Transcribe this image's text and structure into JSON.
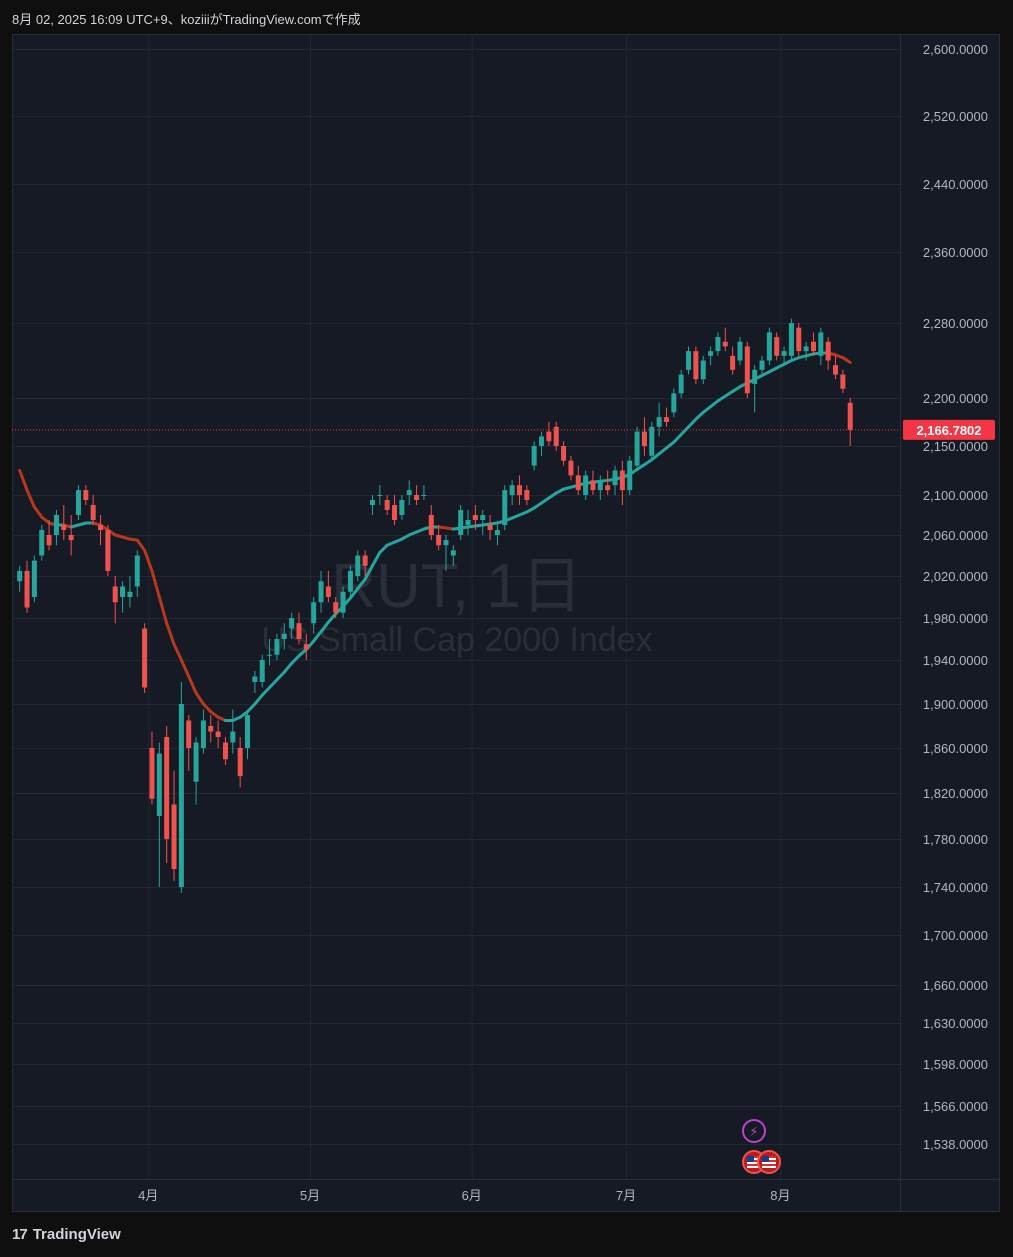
{
  "header": {
    "text": "8月 02, 2025 16:09 UTC+9、koziiiがTradingView.comで作成"
  },
  "watermark": {
    "symbol": "RUT, 1日",
    "name": "US Small Cap 2000 Index"
  },
  "footer": {
    "brand": "TradingView",
    "logo": "17"
  },
  "colors": {
    "up": "#26a69a",
    "down": "#ef5350",
    "ma_up": "#26a69a",
    "ma_down": "#b7381d",
    "price_tag": "#f23645"
  },
  "chart_data": {
    "type": "candlestick",
    "y_axis_ticks": [
      2600,
      2520,
      2440,
      2360,
      2280,
      2200,
      2150,
      2100,
      2060,
      2020,
      1980,
      1940,
      1900,
      1860,
      1820,
      1780,
      1740,
      1700,
      1660,
      1630,
      1598,
      1566,
      1538
    ],
    "y_axis_labels": [
      "2,600.0000",
      "2,520.0000",
      "2,440.0000",
      "2,360.0000",
      "2,280.0000",
      "2,200.0000",
      "2,150.0000",
      "2,100.0000",
      "2,060.0000",
      "2,020.0000",
      "1,980.0000",
      "1,940.0000",
      "1,900.0000",
      "1,860.0000",
      "1,820.0000",
      "1,780.0000",
      "1,740.0000",
      "1,700.0000",
      "1,660.0000",
      "1,630.0000",
      "1,598.0000",
      "1,566.0000",
      "1,538.0000"
    ],
    "x_axis_labels": [
      "4月",
      "5月",
      "6月",
      "7月",
      "8月"
    ],
    "x_axis_label_index": [
      18,
      40,
      62,
      83,
      104
    ],
    "last_price": 2166.7802,
    "last_price_label": "2,166.7802",
    "candles": [
      [
        2015,
        2030,
        2005,
        2025
      ],
      [
        2025,
        2035,
        1985,
        1990
      ],
      [
        2000,
        2040,
        1995,
        2035
      ],
      [
        2040,
        2070,
        2035,
        2065
      ],
      [
        2060,
        2075,
        2045,
        2050
      ],
      [
        2060,
        2085,
        2050,
        2080
      ],
      [
        2070,
        2090,
        2055,
        2065
      ],
      [
        2060,
        2080,
        2040,
        2055
      ],
      [
        2080,
        2110,
        2075,
        2105
      ],
      [
        2105,
        2110,
        2090,
        2095
      ],
      [
        2090,
        2100,
        2070,
        2075
      ],
      [
        2070,
        2080,
        2050,
        2065
      ],
      [
        2065,
        2070,
        2020,
        2025
      ],
      [
        2010,
        2020,
        1975,
        1995
      ],
      [
        2000,
        2015,
        1985,
        2010
      ],
      [
        2000,
        2020,
        1990,
        2005
      ],
      [
        2010,
        2045,
        2000,
        2040
      ],
      [
        1970,
        1975,
        1910,
        1915
      ],
      [
        1860,
        1875,
        1810,
        1815
      ],
      [
        1800,
        1865,
        1740,
        1855
      ],
      [
        1870,
        1880,
        1760,
        1780
      ],
      [
        1810,
        1840,
        1745,
        1755
      ],
      [
        1740,
        1920,
        1735,
        1900
      ],
      [
        1885,
        1890,
        1840,
        1860
      ],
      [
        1830,
        1870,
        1810,
        1865
      ],
      [
        1860,
        1895,
        1855,
        1885
      ],
      [
        1880,
        1890,
        1865,
        1875
      ],
      [
        1875,
        1885,
        1860,
        1870
      ],
      [
        1865,
        1870,
        1845,
        1850
      ],
      [
        1865,
        1895,
        1855,
        1875
      ],
      [
        1860,
        1870,
        1825,
        1835
      ],
      [
        1860,
        1895,
        1850,
        1890
      ],
      [
        1920,
        1930,
        1910,
        1925
      ],
      [
        1920,
        1945,
        1915,
        1940
      ],
      [
        1945,
        1960,
        1935,
        1945
      ],
      [
        1945,
        1965,
        1940,
        1960
      ],
      [
        1960,
        1975,
        1950,
        1965
      ],
      [
        1970,
        1985,
        1960,
        1980
      ],
      [
        1975,
        1985,
        1955,
        1960
      ],
      [
        1955,
        1965,
        1940,
        1950
      ],
      [
        1975,
        2000,
        1965,
        1995
      ],
      [
        1995,
        2025,
        1985,
        2015
      ],
      [
        2010,
        2025,
        1995,
        2000
      ],
      [
        1995,
        2000,
        1980,
        1985
      ],
      [
        1985,
        2010,
        1980,
        2005
      ],
      [
        2005,
        2030,
        2000,
        2025
      ],
      [
        2020,
        2045,
        2015,
        2040
      ],
      [
        2040,
        2045,
        2020,
        2030
      ],
      [
        2090,
        2100,
        2080,
        2095
      ],
      [
        2100,
        2110,
        2090,
        2100
      ],
      [
        2095,
        2100,
        2080,
        2085
      ],
      [
        2090,
        2100,
        2070,
        2075
      ],
      [
        2080,
        2100,
        2075,
        2095
      ],
      [
        2100,
        2115,
        2090,
        2105
      ],
      [
        2100,
        2110,
        2090,
        2095
      ],
      [
        2100,
        2110,
        2095,
        2100
      ],
      [
        2080,
        2090,
        2055,
        2060
      ],
      [
        2060,
        2070,
        2045,
        2050
      ],
      [
        2050,
        2060,
        2025,
        2055
      ],
      [
        2040,
        2050,
        2030,
        2045
      ],
      [
        2060,
        2090,
        2055,
        2085
      ],
      [
        2070,
        2085,
        2060,
        2075
      ],
      [
        2080,
        2090,
        2065,
        2075
      ],
      [
        2075,
        2085,
        2060,
        2080
      ],
      [
        2070,
        2080,
        2055,
        2065
      ],
      [
        2060,
        2070,
        2050,
        2065
      ],
      [
        2070,
        2110,
        2065,
        2105
      ],
      [
        2100,
        2115,
        2090,
        2110
      ],
      [
        2110,
        2120,
        2090,
        2100
      ],
      [
        2105,
        2110,
        2090,
        2095
      ],
      [
        2130,
        2155,
        2125,
        2150
      ],
      [
        2150,
        2165,
        2140,
        2160
      ],
      [
        2165,
        2175,
        2150,
        2155
      ],
      [
        2170,
        2175,
        2145,
        2150
      ],
      [
        2150,
        2155,
        2130,
        2135
      ],
      [
        2135,
        2140,
        2115,
        2120
      ],
      [
        2120,
        2130,
        2100,
        2105
      ],
      [
        2100,
        2125,
        2095,
        2120
      ],
      [
        2115,
        2125,
        2100,
        2105
      ],
      [
        2105,
        2120,
        2095,
        2115
      ],
      [
        2110,
        2125,
        2100,
        2105
      ],
      [
        2110,
        2130,
        2100,
        2125
      ],
      [
        2125,
        2135,
        2090,
        2105
      ],
      [
        2105,
        2140,
        2100,
        2135
      ],
      [
        2130,
        2170,
        2125,
        2165
      ],
      [
        2165,
        2180,
        2140,
        2150
      ],
      [
        2140,
        2175,
        2135,
        2170
      ],
      [
        2170,
        2195,
        2160,
        2180
      ],
      [
        2180,
        2190,
        2170,
        2175
      ],
      [
        2185,
        2210,
        2180,
        2205
      ],
      [
        2205,
        2230,
        2200,
        2225
      ],
      [
        2230,
        2255,
        2225,
        2250
      ],
      [
        2250,
        2255,
        2215,
        2220
      ],
      [
        2220,
        2245,
        2215,
        2240
      ],
      [
        2245,
        2255,
        2235,
        2250
      ],
      [
        2250,
        2270,
        2245,
        2265
      ],
      [
        2260,
        2275,
        2250,
        2255
      ],
      [
        2245,
        2255,
        2225,
        2230
      ],
      [
        2240,
        2265,
        2235,
        2260
      ],
      [
        2255,
        2260,
        2200,
        2205
      ],
      [
        2215,
        2235,
        2185,
        2230
      ],
      [
        2230,
        2245,
        2225,
        2240
      ],
      [
        2240,
        2275,
        2235,
        2270
      ],
      [
        2265,
        2270,
        2240,
        2245
      ],
      [
        2245,
        2255,
        2235,
        2250
      ],
      [
        2245,
        2285,
        2240,
        2280
      ],
      [
        2275,
        2280,
        2245,
        2250
      ],
      [
        2250,
        2260,
        2240,
        2255
      ],
      [
        2260,
        2270,
        2245,
        2250
      ],
      [
        2245,
        2275,
        2235,
        2270
      ],
      [
        2260,
        2265,
        2230,
        2240
      ],
      [
        2235,
        2245,
        2220,
        2225
      ],
      [
        2225,
        2230,
        2205,
        2210
      ],
      [
        2195,
        2200,
        2150,
        2166.78
      ]
    ],
    "ma_length": 20,
    "ma_values": [
      2125,
      2105,
      2088,
      2078,
      2072,
      2070,
      2070,
      2068,
      2070,
      2072,
      2072,
      2070,
      2065,
      2060,
      2058,
      2056,
      2055,
      2045,
      2025,
      2000,
      1975,
      1955,
      1940,
      1925,
      1910,
      1900,
      1893,
      1888,
      1885,
      1885,
      1888,
      1893,
      1900,
      1908,
      1915,
      1922,
      1929,
      1937,
      1944,
      1950,
      1958,
      1967,
      1976,
      1984,
      1991,
      1999,
      2008,
      2017,
      2030,
      2043,
      2050,
      2053,
      2056,
      2060,
      2063,
      2066,
      2068,
      2068,
      2067,
      2066,
      2067,
      2068,
      2069,
      2070,
      2071,
      2072,
      2074,
      2077,
      2080,
      2083,
      2087,
      2092,
      2097,
      2102,
      2106,
      2108,
      2110,
      2112,
      2113,
      2114,
      2115,
      2116,
      2118,
      2121,
      2126,
      2131,
      2136,
      2142,
      2148,
      2154,
      2162,
      2170,
      2178,
      2185,
      2191,
      2197,
      2202,
      2207,
      2212,
      2216,
      2220,
      2224,
      2228,
      2232,
      2236,
      2240,
      2243,
      2245,
      2247,
      2248,
      2248,
      2246,
      2243,
      2238
    ]
  },
  "event_markers": [
    {
      "name": "lightning-event-icon",
      "glyph": "⚡"
    },
    {
      "name": "us-flag-event-icon",
      "glyph": "🇺🇸"
    },
    {
      "name": "us-flag-event-icon-2",
      "glyph": "🇺🇸"
    }
  ]
}
